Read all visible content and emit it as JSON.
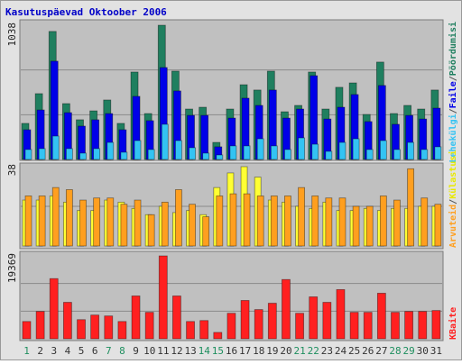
{
  "chart_data": [
    {
      "type": "bar",
      "title": "Kasutuspäevad Oktoober 2006",
      "legend_separator": "/",
      "ylim": [
        0,
        1038
      ],
      "yticks": [
        1038
      ],
      "grid": true,
      "series": [
        {
          "name": "Pöördumisi",
          "color": "#1f7f5f",
          "values": [
            279,
            509,
            990,
            432,
            307,
            376,
            460,
            279,
            676,
            355,
            1038,
            683,
            390,
            404,
            132,
            390,
            578,
            537,
            683,
            369,
            418,
            676,
            390,
            558,
            592,
            348,
            753,
            355,
            418,
            390,
            537
          ]
        },
        {
          "name": "Faile",
          "color": "#0000e8",
          "values": [
            230,
            383,
            760,
            362,
            258,
            307,
            355,
            230,
            488,
            300,
            711,
            530,
            341,
            341,
            98,
            320,
            474,
            418,
            537,
            320,
            390,
            648,
            313,
            404,
            502,
            293,
            572,
            272,
            341,
            313,
            397
          ]
        },
        {
          "name": "Lehekülgi",
          "color": "#33c3f3",
          "values": [
            77,
            84,
            181,
            84,
            49,
            84,
            132,
            56,
            146,
            77,
            272,
            146,
            91,
            49,
            35,
            105,
            105,
            160,
            105,
            77,
            167,
            118,
            63,
            132,
            160,
            77,
            146,
            77,
            132,
            77,
            98
          ]
        }
      ]
    },
    {
      "type": "bar",
      "ylim": [
        0,
        38
      ],
      "yticks": [
        38
      ],
      "grid": true,
      "series": [
        {
          "name": "Külastusi",
          "color": "#ffff33",
          "values": [
            22,
            22,
            24,
            21,
            17,
            17,
            22,
            21,
            18,
            15,
            19,
            16,
            17,
            15,
            28,
            35,
            38,
            33,
            22,
            21,
            19,
            18,
            21,
            17,
            17,
            18,
            17,
            18,
            18,
            19,
            19
          ]
        },
        {
          "name": "Arvuteid",
          "color": "#ff9f1f",
          "values": [
            24,
            24,
            28,
            27,
            22,
            23,
            23,
            20,
            22,
            15,
            21,
            27,
            20,
            14,
            24,
            25,
            25,
            24,
            24,
            24,
            28,
            24,
            23,
            23,
            19,
            19,
            24,
            22,
            37,
            23,
            20
          ]
        }
      ]
    },
    {
      "type": "bar",
      "ylim": [
        0,
        19369
      ],
      "yticks": [
        19369
      ],
      "grid": true,
      "categories": [
        "1",
        "2",
        "3",
        "4",
        "5",
        "6",
        "7",
        "8",
        "9",
        "10",
        "11",
        "12",
        "13",
        "14",
        "15",
        "16",
        "17",
        "18",
        "19",
        "20",
        "21",
        "22",
        "23",
        "24",
        "25",
        "26",
        "27",
        "28",
        "29",
        "30",
        "31"
      ],
      "category_colors": [
        "#1f8f5f",
        "#333",
        "#333",
        "#333",
        "#333",
        "#333",
        "#1f8f5f",
        "#1f8f5f",
        "#333",
        "#333",
        "#333",
        "#333",
        "#333",
        "#1f8f5f",
        "#1f8f5f",
        "#333",
        "#333",
        "#333",
        "#333",
        "#333",
        "#1f8f5f",
        "#1f8f5f",
        "#333",
        "#333",
        "#333",
        "#333",
        "#333",
        "#1f8f5f",
        "#1f8f5f",
        "#333",
        "#333"
      ],
      "series": [
        {
          "name": "KBaite",
          "color": "#ff2020",
          "values": [
            4040,
            6390,
            14060,
            8520,
            4470,
            5540,
            5330,
            4040,
            10010,
            6180,
            19369,
            10010,
            4040,
            4260,
            1490,
            5960,
            8950,
            6820,
            8310,
            13850,
            5960,
            9800,
            8520,
            11500,
            6180,
            6180,
            10650,
            6180,
            6390,
            6390,
            6600
          ]
        }
      ]
    }
  ]
}
